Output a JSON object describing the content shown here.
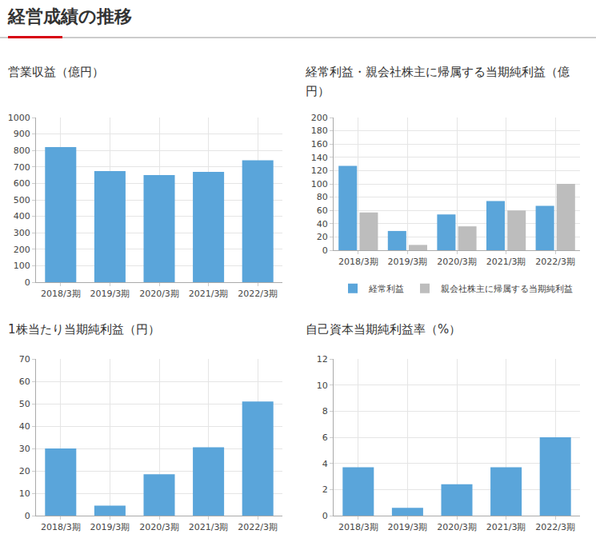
{
  "header": {
    "title": "経営成績の推移"
  },
  "chart_data": [
    {
      "type": "bar",
      "title": "営業収益（億円）",
      "categories": [
        "2018/3期",
        "2019/3期",
        "2020/3期",
        "2021/3期",
        "2022/3期"
      ],
      "values": [
        820,
        675,
        650,
        670,
        740
      ],
      "color": "#5aa5da",
      "ylim": [
        0,
        1000
      ],
      "yticks": [
        0,
        100,
        200,
        300,
        400,
        500,
        600,
        700,
        800,
        900,
        1000
      ],
      "grid": true
    },
    {
      "type": "bar",
      "title": "経常利益・親会社株主に帰属する当期純利益（億円）",
      "categories": [
        "2018/3期",
        "2019/3期",
        "2020/3期",
        "2021/3期",
        "2022/3期"
      ],
      "series": [
        {
          "name": "経常利益",
          "color": "#5aa5da",
          "values": [
            127,
            29,
            54,
            74,
            67
          ]
        },
        {
          "name": "親会社株主に帰属する当期純利益",
          "color": "#bdbdbd",
          "values": [
            57,
            8,
            36,
            60,
            100
          ]
        }
      ],
      "ylim": [
        0,
        200
      ],
      "yticks": [
        0,
        20,
        40,
        60,
        80,
        100,
        120,
        140,
        160,
        180,
        200
      ],
      "grid": true,
      "legend": "bottom"
    },
    {
      "type": "bar",
      "title": "1株当たり当期純利益（円）",
      "categories": [
        "2018/3期",
        "2019/3期",
        "2020/3期",
        "2021/3期",
        "2022/3期"
      ],
      "values": [
        30,
        4.5,
        18.5,
        30.5,
        51
      ],
      "color": "#5aa5da",
      "ylim": [
        0,
        70
      ],
      "yticks": [
        0,
        10,
        20,
        30,
        40,
        50,
        60,
        70
      ],
      "grid": true
    },
    {
      "type": "bar",
      "title": "自己資本当期純利益率（%）",
      "categories": [
        "2018/3期",
        "2019/3期",
        "2020/3期",
        "2021/3期",
        "2022/3期"
      ],
      "values": [
        3.7,
        0.6,
        2.4,
        3.7,
        6.0
      ],
      "color": "#5aa5da",
      "ylim": [
        0,
        12
      ],
      "yticks": [
        0,
        2,
        4,
        6,
        8,
        10,
        12
      ],
      "grid": true
    }
  ]
}
